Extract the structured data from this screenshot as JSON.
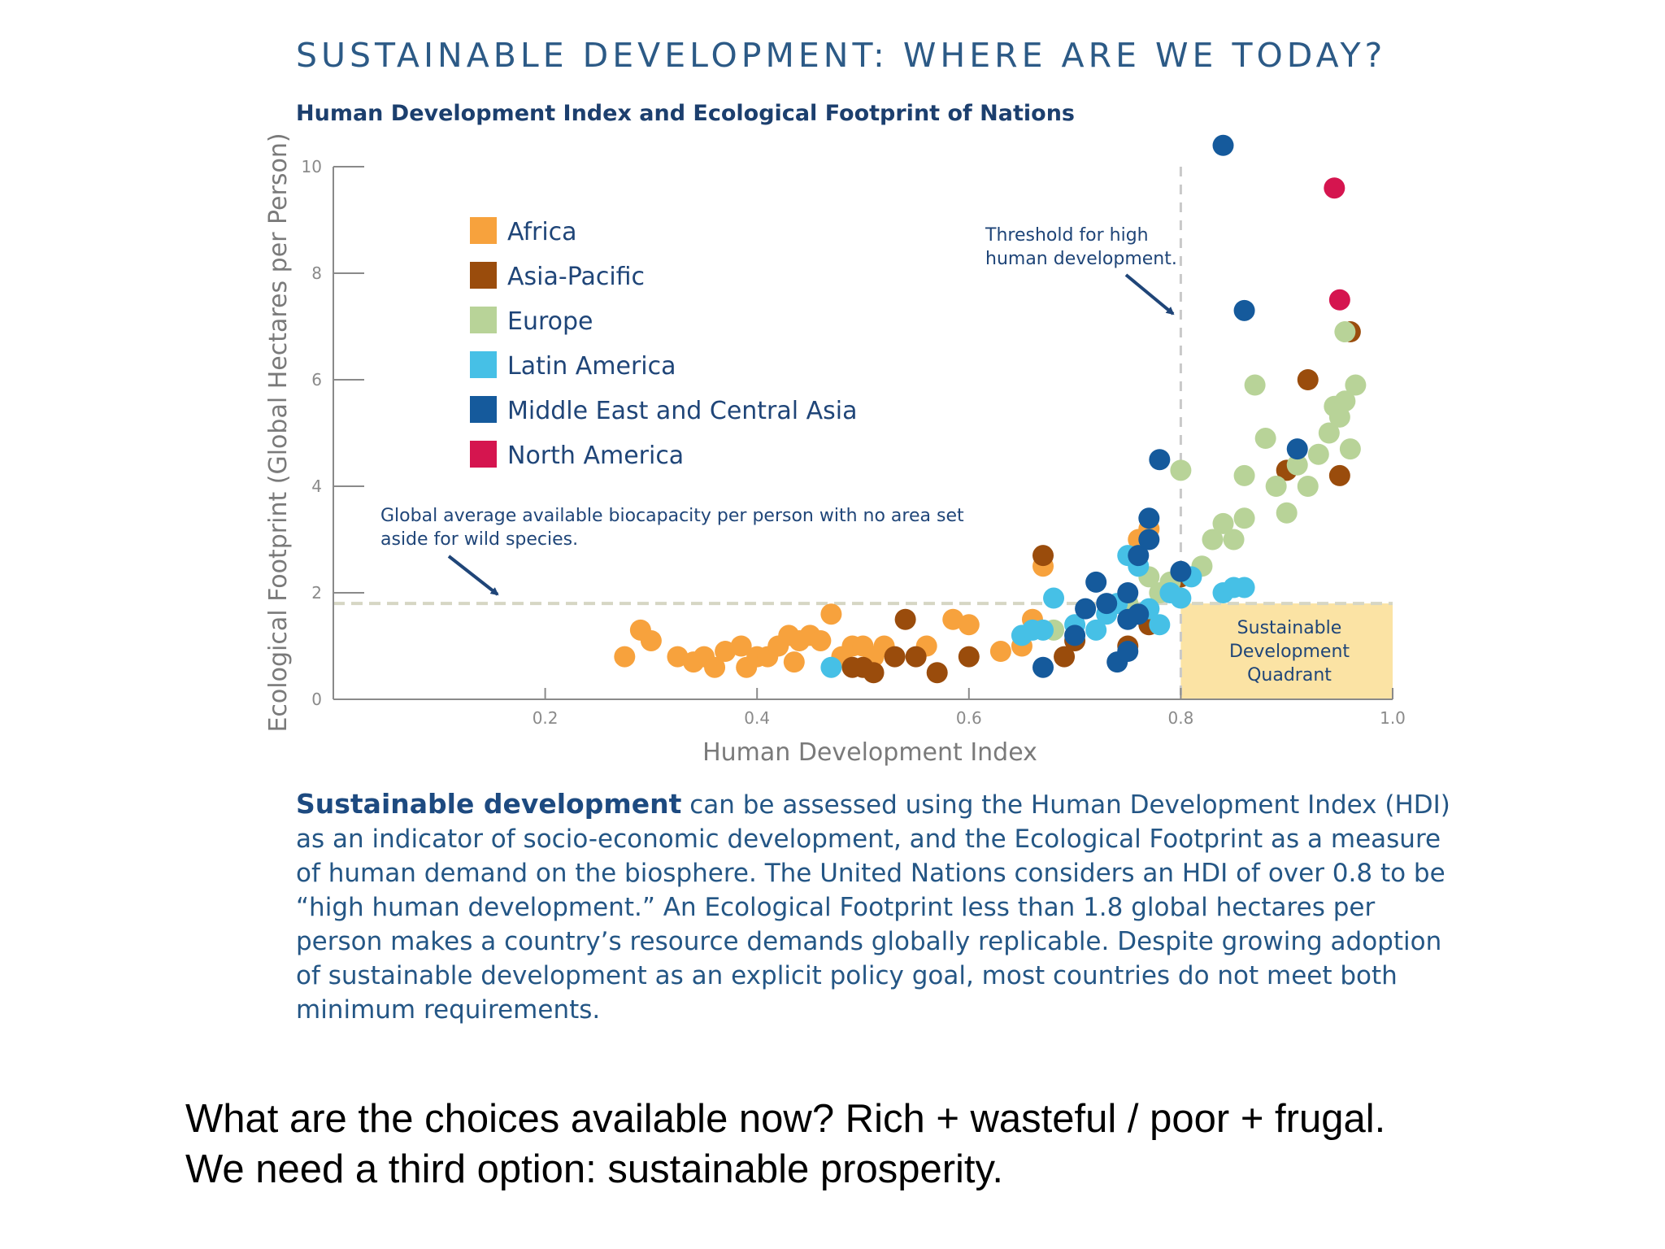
{
  "header": {
    "title": "SUSTAINABLE DEVELOPMENT: WHERE ARE WE TODAY?",
    "subtitle": "Human Development Index and Ecological Footprint of Nations"
  },
  "annotations": {
    "threshold_note": [
      "Threshold for high",
      "human development."
    ],
    "biocapacity_note": [
      "Global average available biocapacity per person with no area set",
      "aside for wild species."
    ],
    "quadrant_label": [
      "Sustainable",
      "Development",
      "Quadrant"
    ]
  },
  "caption": {
    "lead": "Sustainable development",
    "rest": " can be assessed using the Human Development Index (HDI) as an indicator of socio-economic development, and the Ecological Footprint as a measure of human demand on the biosphere. The United Nations considers an HDI of over 0.8 to be “high human development.” An Ecological Footprint less than 1.8 global hectares per person makes a country’s resource demands globally replicable. Despite growing adoption of sustainable development as an explicit policy goal, most countries do not meet both minimum requirements."
  },
  "bottom_text": {
    "line1": "What are the choices available now? Rich + wasteful / poor + frugal.",
    "line2": "We need a third option: sustainable prosperity."
  },
  "chart_data": {
    "type": "scatter",
    "title": "Human Development Index and Ecological Footprint of Nations",
    "xlabel": "Human Development Index",
    "ylabel": "Ecological Footprint (Global Hectares per Person)",
    "xlim": [
      0,
      1.0
    ],
    "ylim": [
      0,
      10
    ],
    "xticks": [
      {
        "v": 0.2,
        "label": "0.2"
      },
      {
        "v": 0.4,
        "label": "0.4"
      },
      {
        "v": 0.6,
        "label": "0.6"
      },
      {
        "v": 0.8,
        "label": "0.8"
      },
      {
        "v": 1.0,
        "label": "1.0"
      }
    ],
    "yticks": [
      {
        "v": 0,
        "label": "0"
      },
      {
        "v": 2,
        "label": "2"
      },
      {
        "v": 4,
        "label": "4"
      },
      {
        "v": 6,
        "label": "6"
      },
      {
        "v": 8,
        "label": "8"
      },
      {
        "v": 10,
        "label": "10"
      }
    ],
    "reference_lines": {
      "hdi_threshold": 0.8,
      "biocapacity": 1.8
    },
    "legend_position": "top-left",
    "series": [
      {
        "name": "Africa",
        "color": "#f7a23d",
        "points": [
          [
            0.275,
            0.8
          ],
          [
            0.29,
            1.3
          ],
          [
            0.3,
            1.1
          ],
          [
            0.325,
            0.8
          ],
          [
            0.34,
            0.7
          ],
          [
            0.35,
            0.8
          ],
          [
            0.36,
            0.6
          ],
          [
            0.37,
            0.9
          ],
          [
            0.385,
            1.0
          ],
          [
            0.39,
            0.6
          ],
          [
            0.4,
            0.8
          ],
          [
            0.41,
            0.8
          ],
          [
            0.42,
            1.0
          ],
          [
            0.43,
            1.2
          ],
          [
            0.435,
            0.7
          ],
          [
            0.44,
            1.1
          ],
          [
            0.45,
            1.2
          ],
          [
            0.46,
            1.1
          ],
          [
            0.47,
            1.6
          ],
          [
            0.48,
            0.8
          ],
          [
            0.49,
            1.0
          ],
          [
            0.5,
            1.0
          ],
          [
            0.51,
            0.8
          ],
          [
            0.52,
            1.0
          ],
          [
            0.56,
            1.0
          ],
          [
            0.585,
            1.5
          ],
          [
            0.6,
            1.4
          ],
          [
            0.63,
            0.9
          ],
          [
            0.65,
            1.0
          ],
          [
            0.66,
            1.5
          ],
          [
            0.67,
            2.5
          ],
          [
            0.76,
            3.0
          ],
          [
            0.77,
            3.2
          ]
        ]
      },
      {
        "name": "Asia-Pacific",
        "color": "#9a4c0c",
        "points": [
          [
            0.49,
            0.6
          ],
          [
            0.5,
            0.6
          ],
          [
            0.51,
            0.5
          ],
          [
            0.53,
            0.8
          ],
          [
            0.54,
            1.5
          ],
          [
            0.55,
            0.8
          ],
          [
            0.57,
            0.5
          ],
          [
            0.6,
            0.8
          ],
          [
            0.67,
            2.7
          ],
          [
            0.69,
            0.8
          ],
          [
            0.7,
            1.1
          ],
          [
            0.75,
            1.0
          ],
          [
            0.77,
            1.4
          ],
          [
            0.8,
            2.3
          ],
          [
            0.9,
            4.3
          ],
          [
            0.92,
            6.0
          ],
          [
            0.95,
            4.2
          ],
          [
            0.96,
            6.9
          ]
        ]
      },
      {
        "name": "Europe",
        "color": "#b8d398",
        "points": [
          [
            0.68,
            1.3
          ],
          [
            0.75,
            1.8
          ],
          [
            0.77,
            2.3
          ],
          [
            0.78,
            2.0
          ],
          [
            0.79,
            2.2
          ],
          [
            0.8,
            4.3
          ],
          [
            0.82,
            2.5
          ],
          [
            0.83,
            3.0
          ],
          [
            0.84,
            3.3
          ],
          [
            0.85,
            3.0
          ],
          [
            0.86,
            3.4
          ],
          [
            0.86,
            4.2
          ],
          [
            0.87,
            5.9
          ],
          [
            0.88,
            4.9
          ],
          [
            0.89,
            4.0
          ],
          [
            0.9,
            3.5
          ],
          [
            0.91,
            4.4
          ],
          [
            0.92,
            4.0
          ],
          [
            0.93,
            4.6
          ],
          [
            0.94,
            5.0
          ],
          [
            0.945,
            5.5
          ],
          [
            0.95,
            5.3
          ],
          [
            0.955,
            5.6
          ],
          [
            0.96,
            4.7
          ],
          [
            0.965,
            5.9
          ],
          [
            0.955,
            6.9
          ]
        ]
      },
      {
        "name": "Latin America",
        "color": "#46c0e6",
        "points": [
          [
            0.47,
            0.6
          ],
          [
            0.65,
            1.2
          ],
          [
            0.66,
            1.3
          ],
          [
            0.67,
            1.3
          ],
          [
            0.68,
            1.9
          ],
          [
            0.7,
            1.4
          ],
          [
            0.72,
            1.3
          ],
          [
            0.73,
            1.6
          ],
          [
            0.74,
            1.8
          ],
          [
            0.75,
            2.7
          ],
          [
            0.76,
            2.5
          ],
          [
            0.77,
            1.7
          ],
          [
            0.78,
            1.4
          ],
          [
            0.79,
            2.0
          ],
          [
            0.8,
            1.9
          ],
          [
            0.81,
            2.3
          ],
          [
            0.84,
            2.0
          ],
          [
            0.85,
            2.1
          ],
          [
            0.86,
            2.1
          ]
        ]
      },
      {
        "name": "Middle East and Central Asia",
        "color": "#155a9c",
        "points": [
          [
            0.67,
            0.6
          ],
          [
            0.7,
            1.2
          ],
          [
            0.71,
            1.7
          ],
          [
            0.72,
            2.2
          ],
          [
            0.73,
            1.8
          ],
          [
            0.75,
            2.0
          ],
          [
            0.75,
            1.5
          ],
          [
            0.76,
            1.6
          ],
          [
            0.76,
            2.7
          ],
          [
            0.77,
            3.0
          ],
          [
            0.77,
            3.4
          ],
          [
            0.78,
            4.5
          ],
          [
            0.8,
            2.4
          ],
          [
            0.74,
            0.7
          ],
          [
            0.75,
            0.9
          ],
          [
            0.84,
            10.4
          ],
          [
            0.86,
            7.3
          ],
          [
            0.91,
            4.7
          ]
        ]
      },
      {
        "name": "North America",
        "color": "#d5154f",
        "points": [
          [
            0.945,
            9.6
          ],
          [
            0.95,
            7.5
          ]
        ]
      }
    ]
  }
}
